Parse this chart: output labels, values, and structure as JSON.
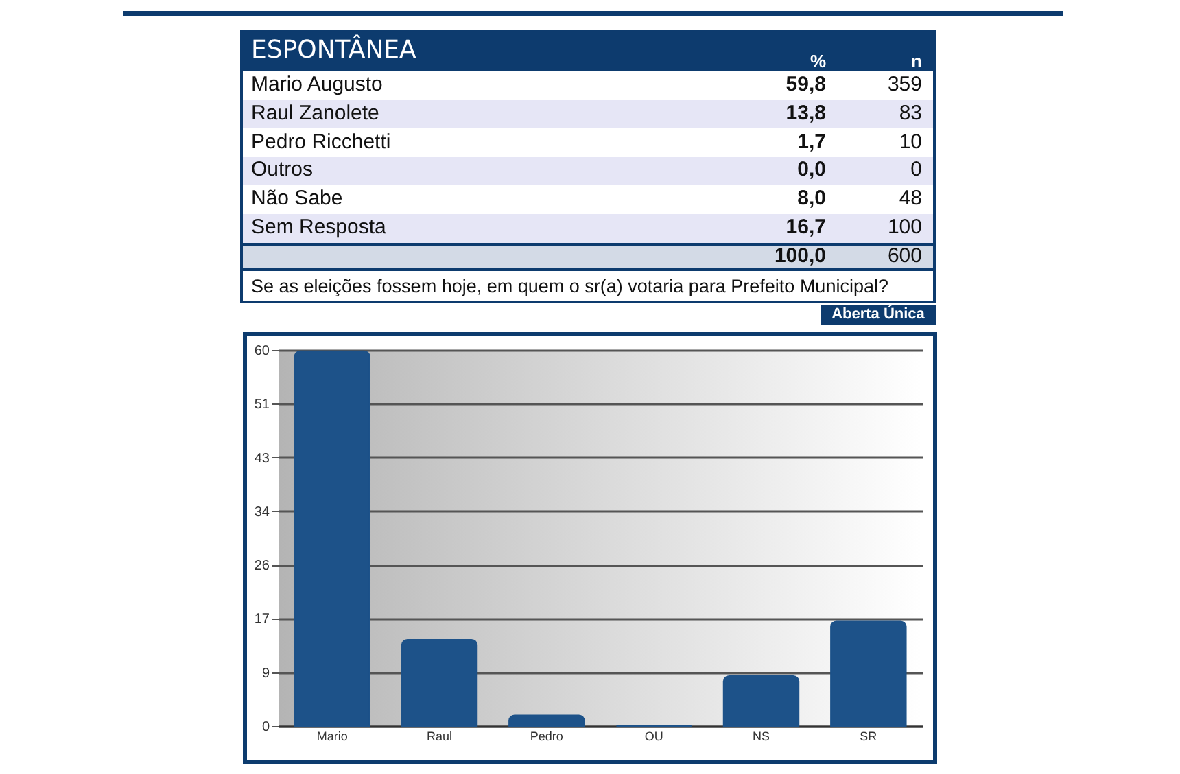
{
  "chart_data": [
    {
      "type": "other",
      "title": "ESPONTÂNEA",
      "categories": [
        "Mario Augusto",
        "Raul Zanolete",
        "Pedro Ricchetti",
        "Outros",
        "Não Sabe",
        "Sem Resposta"
      ],
      "series": [
        {
          "name": "%",
          "values": [
            59.8,
            13.8,
            1.7,
            0.0,
            8.0,
            16.7
          ],
          "value_labels": [
            "59,8",
            "13,8",
            "1,7",
            "0,0",
            "8,0",
            "16,7"
          ]
        },
        {
          "name": "n",
          "values": [
            359,
            83,
            10,
            0,
            48,
            100
          ],
          "value_labels": [
            "359",
            "83",
            "10",
            "0",
            "48",
            "100"
          ]
        }
      ],
      "totals": [
        "100,0",
        "600"
      ],
      "annotations": [
        "Se as eleições fossem hoje, em quem o sr(a) votaria para Prefeito Municipal?",
        "Aberta Única"
      ]
    },
    {
      "type": "bar",
      "categories": [
        "Mario",
        "Raul",
        "Pedro",
        "OU",
        "NS",
        "SR"
      ],
      "values": [
        59.8,
        13.8,
        1.7,
        0.0,
        8.0,
        16.7
      ],
      "color": "#1d5289",
      "ylim": [
        0,
        60
      ],
      "yticks": [
        0,
        {
          "value": 8.57,
          "label": "9"
        },
        {
          "value": 17.14,
          "label": "17"
        },
        {
          "value": 25.71,
          "label": "26"
        },
        {
          "value": 34.29,
          "label": "34"
        },
        {
          "value": 42.86,
          "label": "43"
        },
        {
          "value": 51.43,
          "label": "51"
        },
        60
      ],
      "grid": "y"
    }
  ]
}
